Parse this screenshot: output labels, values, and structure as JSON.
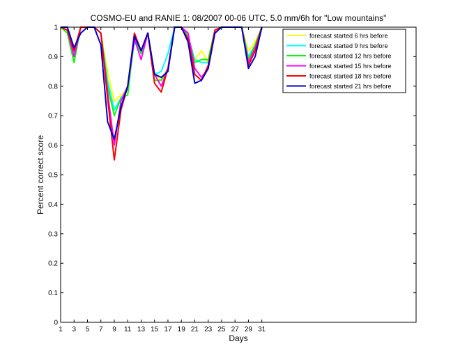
{
  "chart_data": {
    "type": "line",
    "title": "COSMO-EU and RANIE 1: 08/2007 00-06 UTC, 5.0 mm/6h for \"Low mountains\"",
    "xlabel": "Days",
    "ylabel": "Percent correct score",
    "xlim": [
      1,
      54
    ],
    "ylim": [
      0,
      1
    ],
    "x_ticks": [
      1,
      3,
      5,
      7,
      9,
      11,
      13,
      15,
      17,
      19,
      21,
      23,
      25,
      27,
      29,
      31
    ],
    "y_ticks": [
      0,
      0.1,
      0.2,
      0.3,
      0.4,
      0.5,
      0.6,
      0.7,
      0.8,
      0.9,
      1
    ],
    "y_tick_labels": [
      "0",
      "0.1",
      "0.2",
      "0.3",
      "0.4",
      "0.5",
      "0.6",
      "0.7",
      "0.8",
      "0.9",
      "1"
    ],
    "grid": false,
    "legend_position": "top-right",
    "x": [
      1,
      2,
      3,
      4,
      5,
      6,
      7,
      8,
      9,
      10,
      11,
      12,
      13,
      14,
      15,
      16,
      17,
      18,
      19,
      20,
      21,
      22,
      23,
      24,
      25,
      26,
      27,
      28,
      29,
      30,
      31
    ],
    "series": [
      {
        "name": "forecast started 6 hrs before",
        "color": "#ffff00",
        "values": [
          1,
          0.98,
          0.9,
          1,
          1,
          1,
          0.98,
          0.85,
          0.75,
          0.77,
          0.79,
          0.96,
          0.92,
          0.98,
          0.84,
          0.82,
          0.86,
          1,
          1,
          0.97,
          0.89,
          0.92,
          0.88,
          0.98,
          1,
          1,
          1,
          1,
          0.92,
          0.95,
          1
        ]
      },
      {
        "name": "forecast started 9 hrs before",
        "color": "#00ffff",
        "values": [
          1,
          0.99,
          0.91,
          1,
          1,
          1,
          0.98,
          0.82,
          0.72,
          0.76,
          0.79,
          0.95,
          0.92,
          0.98,
          0.84,
          0.85,
          0.91,
          1,
          1,
          0.97,
          0.89,
          0.88,
          0.88,
          0.98,
          1,
          1,
          1,
          1,
          0.9,
          0.94,
          1
        ]
      },
      {
        "name": "forecast started 12 hrs before",
        "color": "#00ff00",
        "values": [
          1,
          0.98,
          0.88,
          1,
          1,
          1,
          0.98,
          0.8,
          0.7,
          0.76,
          0.77,
          0.97,
          0.91,
          0.98,
          0.82,
          0.82,
          0.86,
          1,
          1,
          0.97,
          0.88,
          0.89,
          0.89,
          0.99,
          1,
          1,
          1,
          1,
          0.89,
          0.94,
          1
        ]
      },
      {
        "name": "forecast started 15 hrs before",
        "color": "#ff00ff",
        "values": [
          1,
          0.99,
          0.9,
          1,
          1,
          1,
          0.98,
          0.78,
          0.6,
          0.75,
          0.8,
          0.96,
          0.89,
          0.98,
          0.84,
          0.8,
          0.86,
          1,
          1,
          0.98,
          0.86,
          0.83,
          0.86,
          0.98,
          1,
          1,
          1,
          1,
          0.88,
          0.93,
          1
        ]
      },
      {
        "name": "forecast started 18 hrs before",
        "color": "#ff0000",
        "values": [
          1,
          0.99,
          0.92,
          1,
          1,
          1,
          0.98,
          0.76,
          0.55,
          0.72,
          0.8,
          0.98,
          0.92,
          0.98,
          0.81,
          0.78,
          0.86,
          1,
          1,
          0.96,
          0.84,
          0.82,
          0.87,
          0.99,
          1,
          1,
          1,
          1,
          0.87,
          0.92,
          1
        ]
      },
      {
        "name": "forecast started 21 hrs before",
        "color": "#0000cc",
        "values": [
          1,
          1,
          0.93,
          0.98,
          1,
          1,
          0.94,
          0.68,
          0.62,
          0.73,
          0.8,
          0.97,
          0.92,
          0.98,
          0.84,
          0.83,
          0.85,
          1,
          1,
          0.95,
          0.81,
          0.82,
          0.86,
          0.98,
          1,
          1,
          1,
          1,
          0.86,
          0.9,
          1
        ]
      }
    ]
  }
}
